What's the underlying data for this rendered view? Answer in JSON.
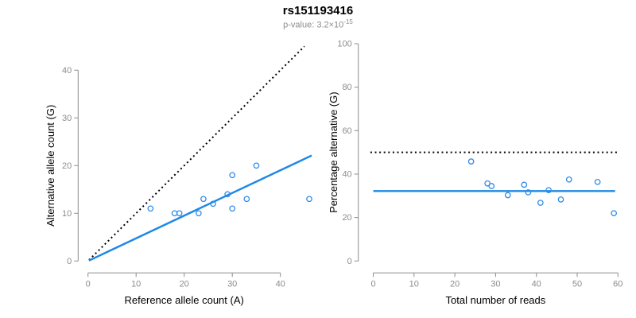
{
  "header": {
    "title": "rs151193416",
    "p_value_base": "p-value: 3.2×10",
    "p_value_exponent": "-15"
  },
  "colors": {
    "line_blue": "#1E88E5",
    "point_blue": "#2E8BE8",
    "axis_gray": "#8c8c8c",
    "dotted_black": "#000000",
    "title_black": "#000000"
  },
  "chart_data": [
    {
      "type": "scatter",
      "title": "",
      "xlabel": "Reference allele count (A)",
      "ylabel": "Alternative allele count (G)",
      "xlim": [
        0,
        46.5
      ],
      "ylim": [
        0,
        45
      ],
      "xticks": [
        0,
        10,
        20,
        30,
        40
      ],
      "yticks": [
        0,
        10,
        20,
        30,
        40
      ],
      "grid": false,
      "legend": false,
      "points": [
        [
          13,
          11
        ],
        [
          18,
          10
        ],
        [
          19,
          10
        ],
        [
          23,
          10
        ],
        [
          24,
          13
        ],
        [
          26,
          12
        ],
        [
          29,
          14
        ],
        [
          30,
          11
        ],
        [
          30,
          18
        ],
        [
          33,
          13
        ],
        [
          35,
          20
        ],
        [
          46,
          13
        ]
      ],
      "lines": [
        {
          "name": "identity-line",
          "style": "dotted",
          "slope": 1,
          "x_range": [
            0.2,
            45
          ]
        },
        {
          "name": "fit-line",
          "style": "solid",
          "slope": 0.4755,
          "x_range": [
            0.2,
            46.5
          ]
        }
      ]
    },
    {
      "type": "scatter",
      "title": "",
      "xlabel": "Total number of reads",
      "ylabel": "Percentage alternative (G)",
      "xlim": [
        0,
        60.5
      ],
      "ylim": [
        0,
        100
      ],
      "xticks": [
        0,
        10,
        20,
        30,
        40,
        50,
        60
      ],
      "yticks": [
        0,
        20,
        40,
        60,
        80,
        100
      ],
      "grid": false,
      "legend": false,
      "points": [
        [
          24,
          45.8
        ],
        [
          28,
          35.7
        ],
        [
          29,
          34.5
        ],
        [
          33,
          30.3
        ],
        [
          37,
          35.1
        ],
        [
          38,
          31.6
        ],
        [
          41,
          26.8
        ],
        [
          43,
          32.6
        ],
        [
          46,
          28.3
        ],
        [
          48,
          37.5
        ],
        [
          55,
          36.4
        ],
        [
          59,
          22
        ]
      ],
      "lines": [
        {
          "name": "expected-50pct-line",
          "style": "dotted",
          "y": 50,
          "x_range": [
            -0.7,
            59.8
          ]
        },
        {
          "name": "mean-pct-line",
          "style": "solid",
          "y": 32.2,
          "x_range": [
            0,
            59.3
          ]
        }
      ]
    }
  ]
}
